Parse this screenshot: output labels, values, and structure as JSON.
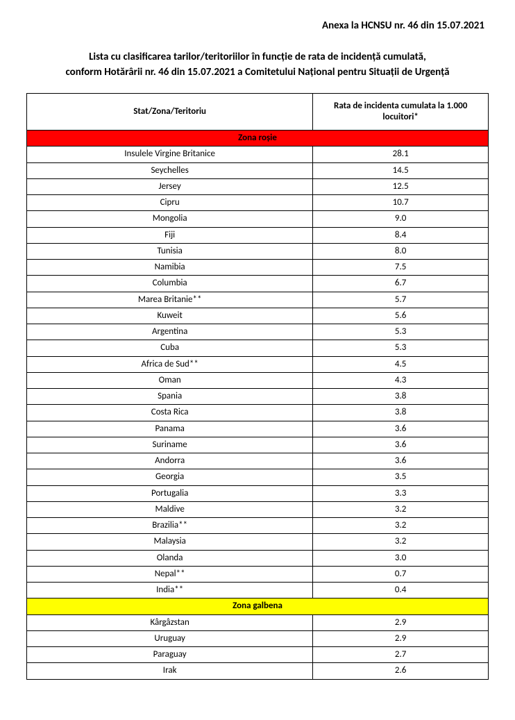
{
  "colors": {
    "zone_red_bg": "#ff0000",
    "zone_red_text": "#000000",
    "zone_yellow_bg": "#ffff00",
    "zone_yellow_text": "#000000",
    "border": "#000000",
    "page_bg": "#ffffff",
    "text": "#000000"
  },
  "header": {
    "annex": "Anexa la HCNSU nr. 46 din 15.07.2021"
  },
  "subtitle": {
    "line1": "Lista cu clasificarea tarilor/teritoriilor în funcție de rata de incidență cumulată,",
    "line2": "conform Hotărârii nr. 46 din 15.07.2021 a Comitetului Național pentru Situații de Urgență"
  },
  "table": {
    "headers": {
      "country": "Stat/Zona/Teritoriu",
      "rate": "Rata de incidenta cumulata la 1.000 locuitori*"
    },
    "zones": [
      {
        "label": "Zona roșie",
        "bg": "#ff0000",
        "text_color": "#000000",
        "rows": [
          {
            "country": "Insulele Virgine Britanice",
            "rate": "28.1"
          },
          {
            "country": "Seychelles",
            "rate": "14.5"
          },
          {
            "country": "Jersey",
            "rate": "12.5"
          },
          {
            "country": "Cipru",
            "rate": "10.7"
          },
          {
            "country": "Mongolia",
            "rate": "9.0"
          },
          {
            "country": "Fiji",
            "rate": "8.4"
          },
          {
            "country": "Tunisia",
            "rate": "8.0"
          },
          {
            "country": "Namibia",
            "rate": "7.5"
          },
          {
            "country": "Columbia",
            "rate": "6.7"
          },
          {
            "country": "Marea Britanie**",
            "rate": "5.7"
          },
          {
            "country": "Kuweit",
            "rate": "5.6"
          },
          {
            "country": "Argentina",
            "rate": "5.3"
          },
          {
            "country": "Cuba",
            "rate": "5.3"
          },
          {
            "country": "Africa de Sud**",
            "rate": "4.5"
          },
          {
            "country": "Oman",
            "rate": "4.3"
          },
          {
            "country": "Spania",
            "rate": "3.8"
          },
          {
            "country": "Costa Rica",
            "rate": "3.8"
          },
          {
            "country": "Panama",
            "rate": "3.6"
          },
          {
            "country": "Suriname",
            "rate": "3.6"
          },
          {
            "country": "Andorra",
            "rate": "3.6"
          },
          {
            "country": "Georgia",
            "rate": "3.5"
          },
          {
            "country": "Portugalia",
            "rate": "3.3"
          },
          {
            "country": "Maldive",
            "rate": "3.2"
          },
          {
            "country": "Brazilia**",
            "rate": "3.2"
          },
          {
            "country": "Malaysia",
            "rate": "3.2"
          },
          {
            "country": "Olanda",
            "rate": "3.0"
          },
          {
            "country": "Nepal**",
            "rate": "0.7"
          },
          {
            "country": "India**",
            "rate": "0.4"
          }
        ]
      },
      {
        "label": "Zona galbena",
        "bg": "#ffff00",
        "text_color": "#000000",
        "rows": [
          {
            "country": "Kârgâzstan",
            "rate": "2.9"
          },
          {
            "country": "Uruguay",
            "rate": "2.9"
          },
          {
            "country": "Paraguay",
            "rate": "2.7"
          },
          {
            "country": "Irak",
            "rate": "2.6"
          }
        ]
      }
    ]
  }
}
